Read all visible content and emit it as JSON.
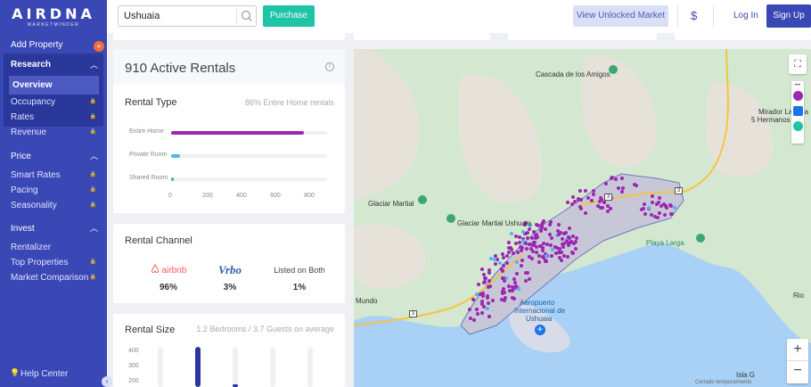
{
  "header": {
    "logo_main": "AIRDNA",
    "logo_sub": "MARKETMINDER",
    "search_value": "Ushuaia",
    "purchase": "Purchase",
    "view_unlocked": "View Unlocked Market",
    "currency": "$",
    "login": "Log In",
    "signup": "Sign Up"
  },
  "sidebar": {
    "add_property": "Add Property",
    "add_badge": "+",
    "research": "Research",
    "overview": "Overview",
    "occupancy": "Occupancy",
    "rates": "Rates",
    "revenue": "Revenue",
    "price": "Price",
    "smart_rates": "Smart Rates",
    "pacing": "Pacing",
    "seasonality": "Seasonality",
    "invest": "Invest",
    "rentalizer": "Rentalizer",
    "top_properties": "Top Properties",
    "market_comparison": "Market Comparison",
    "help_center": "Help Center"
  },
  "summary": {
    "active_rentals": "910 Active Rentals"
  },
  "rental_type": {
    "title": "Rental Type",
    "subtitle": "86% Entire Home rentals",
    "rows": [
      {
        "label": "Entire Home",
        "value": 782,
        "color": "#9c27b0"
      },
      {
        "label": "Private Room",
        "value": 52,
        "color": "#4fb3f6"
      },
      {
        "label": "Shared Room",
        "value": 6,
        "color": "#1fc3a6"
      }
    ],
    "ticks": [
      "0",
      "200",
      "400",
      "600",
      "800"
    ],
    "max": 920
  },
  "rental_channel": {
    "title": "Rental Channel",
    "airbnb_label": "airbnb",
    "airbnb_pct": "96%",
    "vrbo_label": "Vrbo",
    "vrbo_pct": "3%",
    "both_label": "Listed on Both",
    "both_pct": "1%"
  },
  "rental_size": {
    "title": "Rental Size",
    "subtitle": "1.2 Bedrooms / 3.7 Guests on average",
    "yticks": [
      "400",
      "300",
      "200"
    ]
  },
  "map": {
    "labels": {
      "cascada": "Cascada de los Amigos",
      "mirador": "Mirador Laguna",
      "mirador2": "5 Hermanos",
      "glaciar": "Glaciar Martial",
      "glaciar_ushuaia": "Glaciar Martial Ushuaia",
      "playa_larga": "Playa Larga",
      "aeropuerto1": "Aeropuerto",
      "aeropuerto2": "Internacional de",
      "aeropuerto3": "Ushuaia",
      "mundo": "Mundo",
      "rio": "Rio",
      "isla": "Isla G",
      "cerrado": "Cerrado temporalmente",
      "route1": "3",
      "route2": "3",
      "route3": "3"
    },
    "zoom_in": "+",
    "zoom_out": "−",
    "more": "•••"
  }
}
